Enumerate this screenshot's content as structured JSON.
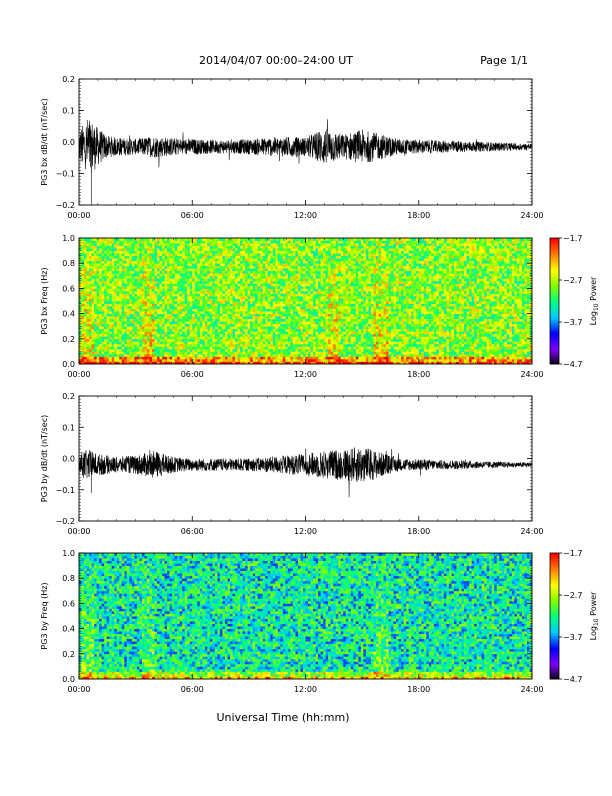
{
  "header": {
    "date_range": "2014/04/07  00:00–24:00 UT",
    "page": "Page 1/1"
  },
  "footer": {
    "xlabel": "Universal Time (hh:mm)"
  },
  "colors": {
    "trace": "#000000",
    "colormap": [
      "#000000",
      "#7f00ff",
      "#0000ff",
      "#00c8ff",
      "#00ff80",
      "#80ff00",
      "#ffff00",
      "#ff8000",
      "#ff0000"
    ]
  },
  "chart_data": [
    {
      "type": "line",
      "ylabel": "PG3 bx dB/dt (nT/sec)",
      "xticks": [
        "00:00",
        "06:00",
        "12:00",
        "18:00",
        "24:00"
      ],
      "xlim": [
        0,
        24
      ],
      "ylim": [
        -0.2,
        0.2
      ],
      "yticks": [
        "0.2",
        "0.1",
        "0.0",
        "−0.1",
        "−0.2"
      ],
      "series": [
        {
          "x": [
            0,
            0.5,
            1,
            1.5,
            2,
            3,
            4,
            5,
            6,
            7,
            8,
            9,
            10,
            11,
            12,
            13,
            14,
            15,
            16,
            17,
            18,
            19,
            20,
            21,
            22,
            23,
            24
          ],
          "envelope": [
            0.05,
            0.1,
            0.06,
            0.035,
            0.03,
            0.025,
            0.035,
            0.028,
            0.025,
            0.022,
            0.022,
            0.024,
            0.03,
            0.032,
            0.03,
            0.06,
            0.04,
            0.055,
            0.04,
            0.025,
            0.022,
            0.02,
            0.018,
            0.016,
            0.014,
            0.012,
            0.01
          ],
          "offset": -0.015,
          "min_spike": -0.2
        }
      ]
    },
    {
      "type": "heatmap",
      "ylabel": "PG3 bx Freq (Hz)",
      "xticks": [
        "00:00",
        "06:00",
        "12:00",
        "18:00",
        "24:00"
      ],
      "xlim": [
        0,
        24
      ],
      "ylim": [
        0.0,
        1.0
      ],
      "yticks": [
        "1.0",
        "0.8",
        "0.6",
        "0.4",
        "0.2",
        "0.0"
      ],
      "colorbar": {
        "label": "Log10 Power",
        "ticks": [
          "−1.7",
          "−2.7",
          "−3.7",
          "−4.7"
        ],
        "range": [
          -4.7,
          -1.7
        ]
      },
      "mean_power": -2.8,
      "hot_bands_hours": [
        0.5,
        3.7,
        13.5,
        16.0
      ]
    },
    {
      "type": "line",
      "ylabel": "PG3 by dB/dt (nT/sec)",
      "xticks": [
        "00:00",
        "06:00",
        "12:00",
        "18:00",
        "24:00"
      ],
      "xlim": [
        0,
        24
      ],
      "ylim": [
        -0.2,
        0.2
      ],
      "yticks": [
        "0.2",
        "0.1",
        "0.0",
        "−0.1",
        "−0.2"
      ],
      "series": [
        {
          "x": [
            0,
            0.5,
            1,
            1.5,
            2,
            3,
            4,
            5,
            6,
            7,
            8,
            9,
            10,
            11,
            12,
            13,
            14,
            15,
            16,
            17,
            18,
            19,
            20,
            21,
            22,
            23,
            24
          ],
          "envelope": [
            0.04,
            0.05,
            0.035,
            0.03,
            0.025,
            0.03,
            0.045,
            0.025,
            0.02,
            0.02,
            0.02,
            0.02,
            0.025,
            0.03,
            0.035,
            0.045,
            0.05,
            0.06,
            0.04,
            0.02,
            0.018,
            0.016,
            0.014,
            0.012,
            0.01,
            0.008,
            0.008
          ],
          "offset": -0.02,
          "min_spike": -0.11
        }
      ]
    },
    {
      "type": "heatmap",
      "ylabel": "PG3 by Freq (Hz)",
      "xticks": [
        "00:00",
        "06:00",
        "12:00",
        "18:00",
        "24:00"
      ],
      "xlim": [
        0,
        24
      ],
      "ylim": [
        0.0,
        1.0
      ],
      "yticks": [
        "1.0",
        "0.8",
        "0.6",
        "0.4",
        "0.2",
        "0.0"
      ],
      "colorbar": {
        "label": "Log10 Power",
        "ticks": [
          "−1.7",
          "−2.7",
          "−3.7",
          "−4.7"
        ],
        "range": [
          -4.7,
          -1.7
        ]
      },
      "mean_power": -3.3,
      "hot_bands_hours": [
        0.5,
        3.7,
        16.0
      ]
    }
  ]
}
